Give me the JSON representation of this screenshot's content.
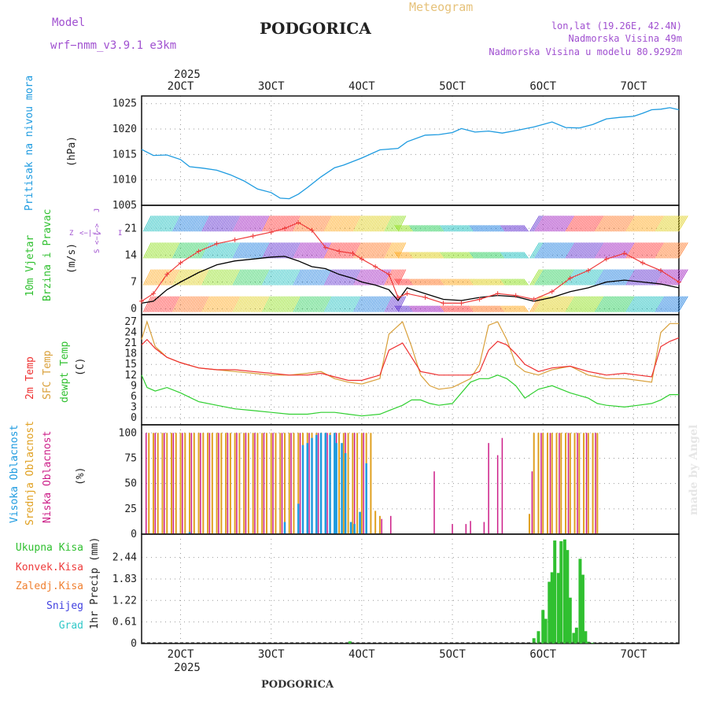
{
  "header": {
    "model_label": "Model",
    "model_name": "wrf−nmm_v3.9.1  e3km",
    "station": "PODGORICA",
    "product": "Meteogram",
    "coords": "lon,lat (19.26E, 42.4N)",
    "altitude": "Nadmorska Visina 49m",
    "model_altitude": "Nadmorska Visina u modelu 80.9292m",
    "footer_station": "PODGORICA",
    "watermark": "made by Angel"
  },
  "colors": {
    "pressure": "#1e9be0",
    "t2m": "#ee3030",
    "sfc": "#d9a03a",
    "dew": "#2fcf2f",
    "wind_speed": "#000000",
    "gust": "#ee3b3b",
    "high_cloud": "#1e9be0",
    "mid_cloud": "#e0a020",
    "low_cloud": "#cc1e88",
    "precip_total": "#30c030",
    "precip_conv": "#ee3b3b",
    "precip_frz": "#f08030",
    "snow": "#4040e0",
    "graupel": "#30c8c8",
    "panel_label_purple": "#a050d0"
  },
  "chart_data": {
    "type": "meteogram",
    "x_axis": {
      "year": "2025",
      "ticks": [
        "2OCT",
        "3OCT",
        "4OCT",
        "5OCT",
        "6OCT",
        "7OCT"
      ],
      "tick_days": [
        2,
        3,
        4,
        5,
        6,
        7
      ],
      "start_day": 1.57,
      "end_day": 7.5
    },
    "pressure": {
      "label": "Pritisak na nivou mora",
      "unit": "(hPa)",
      "yticks": [
        "1005",
        "1010",
        "1015",
        "1020",
        "1025"
      ],
      "ylim": [
        1005,
        1026.5
      ],
      "x": [
        1.57,
        1.7,
        1.85,
        2.0,
        2.1,
        2.25,
        2.4,
        2.55,
        2.7,
        2.85,
        3.0,
        3.1,
        3.2,
        3.3,
        3.4,
        3.55,
        3.7,
        3.8,
        4.0,
        4.2,
        4.4,
        4.5,
        4.7,
        4.85,
        5.0,
        5.1,
        5.25,
        5.4,
        5.55,
        5.7,
        5.9,
        6.1,
        6.25,
        6.4,
        6.55,
        6.7,
        6.85,
        7.0,
        7.1,
        7.2,
        7.3,
        7.4,
        7.5
      ],
      "values": [
        1016.0,
        1014.8,
        1014.9,
        1014.0,
        1012.6,
        1012.3,
        1011.9,
        1011.0,
        1009.8,
        1008.2,
        1007.5,
        1006.4,
        1006.3,
        1007.2,
        1008.5,
        1010.6,
        1012.4,
        1012.9,
        1014.3,
        1015.9,
        1016.2,
        1017.5,
        1018.8,
        1018.9,
        1019.3,
        1020.1,
        1019.4,
        1019.6,
        1019.2,
        1019.7,
        1020.4,
        1021.4,
        1020.3,
        1020.2,
        1020.9,
        1022.0,
        1022.3,
        1022.5,
        1023.1,
        1023.8,
        1023.9,
        1024.2,
        1023.8
      ]
    },
    "wind": {
      "labels": [
        "10m Vjetar",
        "Brzina i Pravac"
      ],
      "unit": "(m/s)",
      "yticks": [
        "0",
        "7",
        "14",
        "21"
      ],
      "ylim": [
        -1.5,
        27
      ],
      "compass": [
        "Z",
        "<−|−>",
        "I",
        "S",
        "<−|−>",
        "J"
      ],
      "speed_x": [
        1.57,
        1.7,
        1.85,
        2.0,
        2.2,
        2.4,
        2.6,
        2.8,
        3.0,
        3.15,
        3.3,
        3.45,
        3.6,
        3.75,
        3.9,
        4.0,
        4.15,
        4.3,
        4.4,
        4.5,
        4.7,
        4.9,
        5.1,
        5.3,
        5.5,
        5.7,
        5.9,
        6.1,
        6.3,
        6.5,
        6.7,
        6.9,
        7.1,
        7.3,
        7.5
      ],
      "speed": [
        1.5,
        2.0,
        5.0,
        7.0,
        9.5,
        11.5,
        12.5,
        13.0,
        13.5,
        13.7,
        12.5,
        11.0,
        10.5,
        9.0,
        8.0,
        7.0,
        6.2,
        5.0,
        2.2,
        5.5,
        4.0,
        2.5,
        2.2,
        3.0,
        3.5,
        3.2,
        2.0,
        3.0,
        4.5,
        5.5,
        7.0,
        7.5,
        7.0,
        6.5,
        5.5
      ],
      "gust_x": [
        1.57,
        1.7,
        1.85,
        2.0,
        2.2,
        2.4,
        2.6,
        2.8,
        3.0,
        3.15,
        3.3,
        3.45,
        3.6,
        3.75,
        3.9,
        4.0,
        4.15,
        4.3,
        4.4,
        4.5,
        4.7,
        4.9,
        5.1,
        5.3,
        5.5,
        5.7,
        5.9,
        6.1,
        6.3,
        6.5,
        6.7,
        6.9,
        7.1,
        7.3,
        7.5
      ],
      "gust": [
        2.0,
        4.0,
        9.0,
        12.0,
        15.0,
        17.0,
        18.0,
        19.0,
        20.0,
        21.0,
        22.5,
        20.5,
        16.0,
        15.0,
        14.5,
        13.0,
        11.0,
        9.0,
        3.0,
        4.0,
        3.0,
        1.5,
        1.5,
        2.5,
        4.0,
        3.5,
        2.5,
        4.5,
        8.0,
        10.0,
        13.0,
        14.5,
        12.0,
        10.0,
        7.0
      ]
    },
    "temperature": {
      "labels": [
        "2m Temp",
        "SFC Temp",
        "dewpt Temp"
      ],
      "unit": "(C)",
      "yticks": [
        "0",
        "3",
        "6",
        "9",
        "12",
        "15",
        "18",
        "21",
        "24",
        "27"
      ],
      "ylim": [
        -2,
        29
      ],
      "x": [
        1.57,
        1.63,
        1.72,
        1.85,
        2.0,
        2.2,
        2.4,
        2.6,
        2.8,
        3.0,
        3.2,
        3.4,
        3.55,
        3.7,
        3.85,
        4.0,
        4.2,
        4.3,
        4.45,
        4.55,
        4.65,
        4.75,
        4.85,
        5.0,
        5.2,
        5.3,
        5.4,
        5.5,
        5.6,
        5.7,
        5.8,
        5.95,
        6.1,
        6.3,
        6.5,
        6.6,
        6.7,
        6.9,
        7.05,
        7.2,
        7.3,
        7.4,
        7.5
      ],
      "t2m": [
        20.5,
        22.0,
        19.5,
        17.0,
        15.5,
        14.0,
        13.5,
        13.5,
        13.0,
        12.5,
        12.0,
        12.0,
        12.5,
        11.5,
        10.5,
        10.5,
        12.0,
        19.0,
        21.0,
        17.0,
        13.0,
        12.5,
        12.0,
        12.0,
        12.0,
        13.0,
        19.0,
        21.5,
        20.5,
        18.0,
        15.0,
        13.0,
        14.0,
        14.5,
        13.0,
        12.5,
        12.0,
        12.5,
        12.0,
        11.5,
        20.0,
        21.5,
        22.5
      ],
      "sfc": [
        22.0,
        27.0,
        20.0,
        17.0,
        15.5,
        14.0,
        13.5,
        13.0,
        12.5,
        12.0,
        12.0,
        12.5,
        13.0,
        11.0,
        10.0,
        9.5,
        11.0,
        23.5,
        27.0,
        20.0,
        12.0,
        9.0,
        8.0,
        8.5,
        11.0,
        15.0,
        26.0,
        27.0,
        22.0,
        15.0,
        13.0,
        12.0,
        13.5,
        14.5,
        12.0,
        11.5,
        11.0,
        11.0,
        10.5,
        10.0,
        24.0,
        26.5,
        26.5
      ],
      "dew": [
        12.0,
        8.5,
        7.5,
        8.5,
        7.0,
        4.5,
        3.5,
        2.5,
        2.0,
        1.5,
        1.0,
        1.0,
        1.5,
        1.5,
        1.0,
        0.5,
        1.0,
        2.0,
        3.5,
        5.0,
        5.0,
        4.0,
        3.5,
        4.0,
        10.0,
        11.0,
        11.0,
        12.0,
        11.0,
        9.0,
        5.5,
        8.0,
        9.0,
        7.0,
        5.5,
        4.0,
        3.5,
        3.0,
        3.5,
        4.0,
        5.0,
        6.5,
        6.5
      ]
    },
    "clouds": {
      "labels": [
        "Visoka Oblacnost",
        "Srednja Oblacnost",
        "Niska Oblacnost"
      ],
      "unit": "(%)",
      "yticks": [
        "0",
        "25",
        "50",
        "75",
        "100"
      ],
      "ylim": [
        0,
        108
      ],
      "bars_mid": [
        [
          1.65,
          100
        ],
        [
          1.7,
          100
        ],
        [
          1.75,
          100
        ],
        [
          1.8,
          100
        ],
        [
          1.85,
          100
        ],
        [
          1.9,
          100
        ],
        [
          1.95,
          100
        ],
        [
          2.0,
          100
        ],
        [
          2.05,
          100
        ],
        [
          2.1,
          100
        ],
        [
          2.15,
          100
        ],
        [
          2.2,
          100
        ],
        [
          2.25,
          100
        ],
        [
          2.3,
          100
        ],
        [
          2.35,
          100
        ],
        [
          2.4,
          100
        ],
        [
          2.45,
          100
        ],
        [
          2.5,
          100
        ],
        [
          2.55,
          100
        ],
        [
          2.6,
          100
        ],
        [
          2.65,
          100
        ],
        [
          2.7,
          100
        ],
        [
          2.75,
          100
        ],
        [
          2.8,
          100
        ],
        [
          2.85,
          100
        ],
        [
          2.9,
          100
        ],
        [
          2.95,
          100
        ],
        [
          3.0,
          100
        ],
        [
          3.05,
          100
        ],
        [
          3.1,
          100
        ],
        [
          3.15,
          100
        ],
        [
          3.2,
          100
        ],
        [
          3.25,
          100
        ],
        [
          3.3,
          100
        ],
        [
          3.35,
          100
        ],
        [
          3.4,
          100
        ],
        [
          3.45,
          100
        ],
        [
          3.5,
          100
        ],
        [
          3.55,
          100
        ],
        [
          3.6,
          100
        ],
        [
          3.65,
          100
        ],
        [
          3.7,
          100
        ],
        [
          3.75,
          100
        ],
        [
          3.8,
          100
        ],
        [
          3.85,
          100
        ],
        [
          3.9,
          100
        ],
        [
          3.95,
          100
        ],
        [
          4.0,
          100
        ],
        [
          4.05,
          100
        ],
        [
          4.1,
          100
        ],
        [
          4.15,
          23
        ],
        [
          4.2,
          18
        ],
        [
          5.85,
          20
        ],
        [
          5.9,
          100
        ],
        [
          5.95,
          100
        ],
        [
          6.0,
          100
        ],
        [
          6.05,
          100
        ],
        [
          6.1,
          100
        ],
        [
          6.15,
          100
        ],
        [
          6.2,
          100
        ],
        [
          6.25,
          100
        ],
        [
          6.3,
          100
        ],
        [
          6.35,
          100
        ],
        [
          6.4,
          100
        ],
        [
          6.45,
          100
        ],
        [
          6.5,
          100
        ],
        [
          6.55,
          100
        ],
        [
          6.6,
          100
        ]
      ],
      "bars_low": [
        [
          1.62,
          100
        ],
        [
          1.72,
          100
        ],
        [
          1.82,
          100
        ],
        [
          1.92,
          100
        ],
        [
          2.02,
          100
        ],
        [
          2.12,
          100
        ],
        [
          2.22,
          100
        ],
        [
          2.32,
          100
        ],
        [
          2.42,
          100
        ],
        [
          2.52,
          100
        ],
        [
          2.62,
          100
        ],
        [
          2.72,
          100
        ],
        [
          2.82,
          100
        ],
        [
          2.92,
          100
        ],
        [
          3.02,
          100
        ],
        [
          3.12,
          100
        ],
        [
          3.22,
          100
        ],
        [
          3.32,
          100
        ],
        [
          3.42,
          100
        ],
        [
          3.52,
          100
        ],
        [
          3.62,
          100
        ],
        [
          3.72,
          100
        ],
        [
          3.82,
          100
        ],
        [
          3.92,
          100
        ],
        [
          4.02,
          100
        ],
        [
          4.22,
          15
        ],
        [
          4.32,
          18
        ],
        [
          4.8,
          62
        ],
        [
          5.0,
          10
        ],
        [
          5.15,
          10
        ],
        [
          5.2,
          13
        ],
        [
          5.35,
          12
        ],
        [
          5.4,
          90
        ],
        [
          5.5,
          78
        ],
        [
          5.55,
          95
        ],
        [
          5.88,
          62
        ],
        [
          5.98,
          100
        ],
        [
          6.08,
          100
        ],
        [
          6.18,
          100
        ],
        [
          6.28,
          100
        ],
        [
          6.38,
          100
        ],
        [
          6.48,
          100
        ],
        [
          6.58,
          100
        ]
      ],
      "bars_high": [
        [
          2.1,
          2
        ],
        [
          3.15,
          12
        ],
        [
          3.3,
          30
        ],
        [
          3.35,
          88
        ],
        [
          3.4,
          90
        ],
        [
          3.45,
          95
        ],
        [
          3.5,
          98
        ],
        [
          3.55,
          100
        ],
        [
          3.6,
          100
        ],
        [
          3.65,
          98
        ],
        [
          3.7,
          100
        ],
        [
          3.72,
          90
        ],
        [
          3.78,
          90
        ],
        [
          3.82,
          80
        ],
        [
          3.88,
          12
        ],
        [
          3.92,
          10
        ],
        [
          3.98,
          22
        ],
        [
          4.05,
          70
        ]
      ]
    },
    "precip": {
      "label": "1hr Precip (mm)",
      "legend": [
        "Ukupna Kisa",
        "Konvek.Kisa",
        "Zaledj.Kisa",
        "Snijeg",
        "Grad"
      ],
      "yticks": [
        "0",
        "0.61",
        "1.22",
        "1.83",
        "2.44"
      ],
      "ylim": [
        0,
        3.1
      ],
      "bars": [
        [
          3.87,
          0.06
        ],
        [
          5.9,
          0.15
        ],
        [
          5.95,
          0.35
        ],
        [
          6.0,
          0.95
        ],
        [
          6.03,
          0.7
        ],
        [
          6.07,
          1.75
        ],
        [
          6.1,
          2.02
        ],
        [
          6.13,
          2.92
        ],
        [
          6.17,
          2.0
        ],
        [
          6.2,
          2.9
        ],
        [
          6.24,
          2.95
        ],
        [
          6.27,
          2.65
        ],
        [
          6.3,
          1.3
        ],
        [
          6.34,
          0.3
        ],
        [
          6.37,
          0.45
        ],
        [
          6.41,
          2.4
        ],
        [
          6.44,
          1.95
        ],
        [
          6.47,
          0.35
        ],
        [
          6.5,
          0.05
        ],
        [
          6.55,
          0.02
        ]
      ]
    }
  }
}
